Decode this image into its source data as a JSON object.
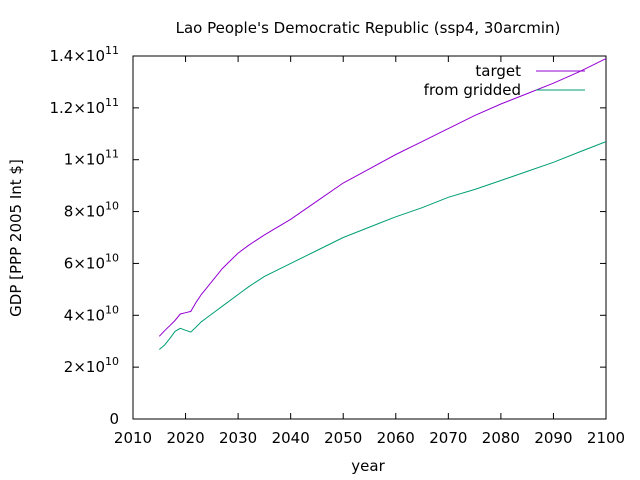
{
  "chart_data": {
    "type": "line",
    "title": "Lao People's Democratic Republic (ssp4, 30arcmin)",
    "xlabel": "year",
    "ylabel": "GDP [PPP 2005 Int $]",
    "xlim": [
      2010,
      2100
    ],
    "ylim": [
      0,
      140000000000
    ],
    "x_ticks": [
      {
        "value": 2010,
        "label": "2010"
      },
      {
        "value": 2020,
        "label": "2020"
      },
      {
        "value": 2030,
        "label": "2030"
      },
      {
        "value": 2040,
        "label": "2040"
      },
      {
        "value": 2050,
        "label": "2050"
      },
      {
        "value": 2060,
        "label": "2060"
      },
      {
        "value": 2070,
        "label": "2070"
      },
      {
        "value": 2080,
        "label": "2080"
      },
      {
        "value": 2090,
        "label": "2090"
      },
      {
        "value": 2100,
        "label": "2100"
      }
    ],
    "y_ticks": [
      {
        "value": 0,
        "mant": "0",
        "exp": ""
      },
      {
        "value": 20000000000,
        "mant": "2×10",
        "exp": "10"
      },
      {
        "value": 40000000000,
        "mant": "4×10",
        "exp": "10"
      },
      {
        "value": 60000000000,
        "mant": "6×10",
        "exp": "10"
      },
      {
        "value": 80000000000,
        "mant": "8×10",
        "exp": "10"
      },
      {
        "value": 100000000000,
        "mant": "1×10",
        "exp": "11"
      },
      {
        "value": 120000000000,
        "mant": "1.2×10",
        "exp": "11"
      },
      {
        "value": 140000000000,
        "mant": "1.4×10",
        "exp": "11"
      }
    ],
    "grid": false,
    "legend_position": "top-right",
    "series": [
      {
        "name": "target",
        "color": "#9400d3",
        "x": [
          2015,
          2016,
          2017,
          2018,
          2019,
          2020,
          2021,
          2022,
          2023,
          2024,
          2025,
          2026,
          2027,
          2028,
          2030,
          2032,
          2035,
          2040,
          2045,
          2050,
          2055,
          2060,
          2065,
          2070,
          2075,
          2080,
          2085,
          2090,
          2095,
          2100
        ],
        "values": [
          31900000000,
          34000000000,
          36000000000,
          38000000000,
          40500000000,
          41000000000,
          41500000000,
          45000000000,
          48000000000,
          50500000000,
          53000000000,
          55500000000,
          58000000000,
          60000000000,
          64000000000,
          67000000000,
          71000000000,
          77000000000,
          84000000000,
          91000000000,
          96500000000,
          102000000000,
          107000000000,
          112000000000,
          117000000000,
          121500000000,
          125500000000,
          129500000000,
          134000000000,
          139000000000
        ]
      },
      {
        "name": "from gridded",
        "color": "#009e73",
        "x": [
          2015,
          2016,
          2017,
          2018,
          2019,
          2020,
          2021,
          2022,
          2023,
          2024,
          2025,
          2026,
          2027,
          2028,
          2030,
          2032,
          2035,
          2040,
          2045,
          2050,
          2055,
          2060,
          2065,
          2070,
          2075,
          2080,
          2085,
          2090,
          2095,
          2100
        ],
        "values": [
          26800000000,
          28500000000,
          31000000000,
          33800000000,
          35000000000,
          34200000000,
          33500000000,
          35500000000,
          37500000000,
          39000000000,
          40500000000,
          42000000000,
          43500000000,
          45000000000,
          48000000000,
          51000000000,
          55000000000,
          60000000000,
          65000000000,
          70000000000,
          74000000000,
          78000000000,
          81500000000,
          85500000000,
          88500000000,
          92000000000,
          95500000000,
          99000000000,
          103000000000,
          107000000000
        ]
      }
    ]
  }
}
